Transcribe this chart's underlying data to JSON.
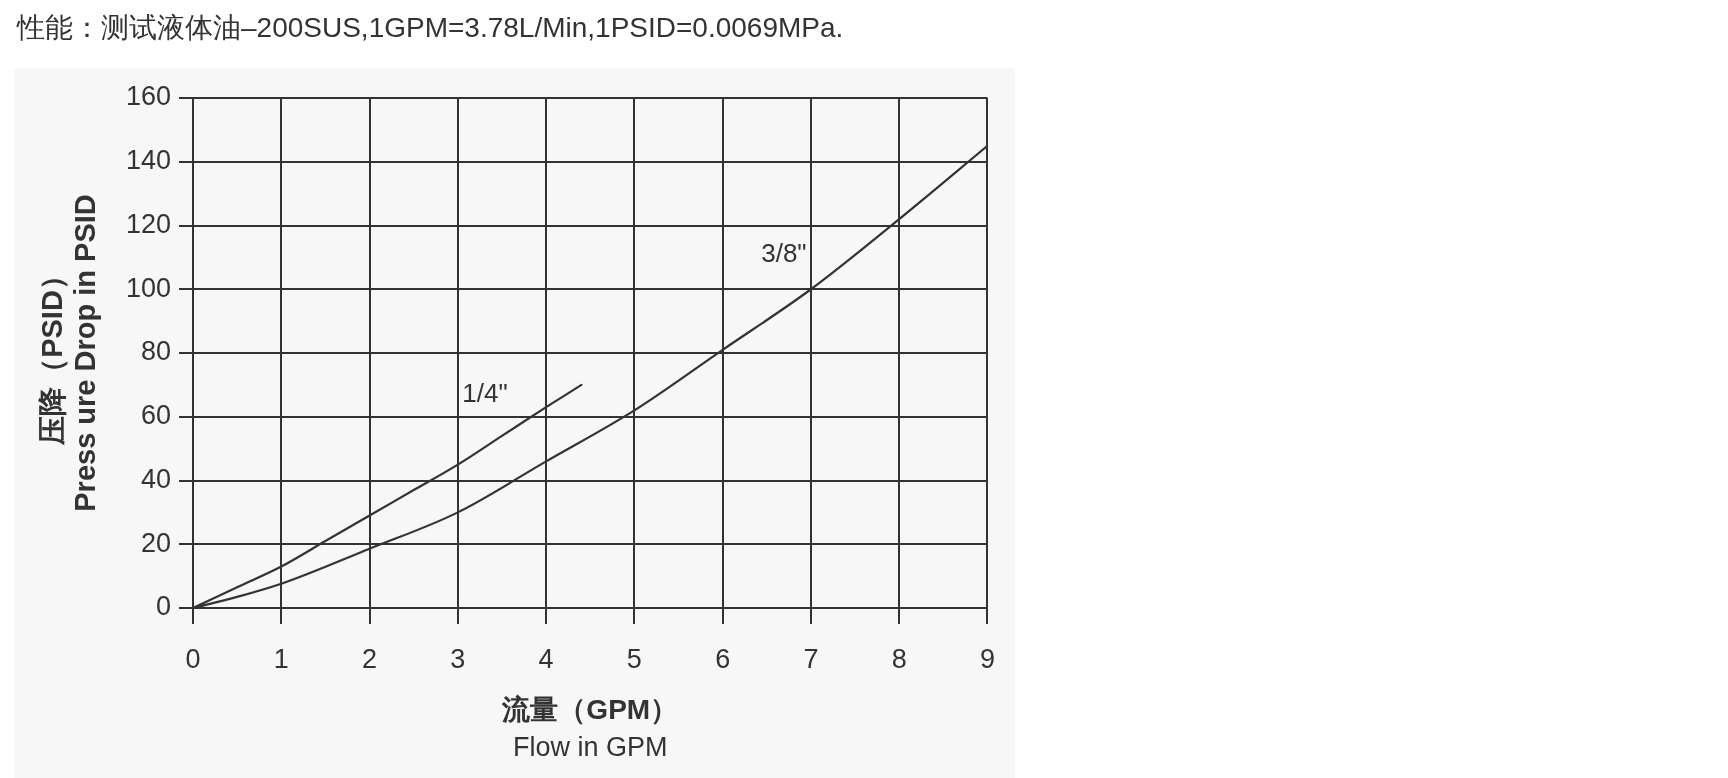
{
  "chart_data": {
    "type": "line",
    "title": "性能：测试液体油–200SUS,1GPM=3.78L/Min,1PSID=0.0069MPa.",
    "xlabel": "流量（GPM）\nFlow in GPM",
    "ylabel": "压降（PSID）\nPress ure Drop in PSID",
    "xlim": [
      0,
      9
    ],
    "xticks": [
      0,
      1,
      2,
      3,
      4,
      5,
      6,
      7,
      8,
      9
    ],
    "ylim": [
      0,
      160
    ],
    "yticks": [
      0,
      20,
      40,
      60,
      80,
      100,
      120,
      140,
      160
    ],
    "grid": true,
    "marker": "none",
    "line_style": "solid",
    "series": [
      {
        "name": "1/4\"",
        "color": "#333333",
        "x": [
          0,
          0.5,
          1,
          1.5,
          2,
          2.5,
          3,
          3.5,
          4,
          4.4
        ],
        "values": [
          0,
          6.5,
          13,
          21,
          29,
          37,
          45,
          54,
          63,
          70
        ]
      },
      {
        "name": "3/8\"",
        "color": "#333333",
        "x": [
          0,
          0.5,
          1,
          2,
          3,
          4,
          5,
          6,
          7,
          8,
          9
        ],
        "values": [
          0,
          3.5,
          7.6,
          18.6,
          30,
          46,
          62,
          81,
          100,
          122,
          145
        ]
      }
    ]
  }
}
